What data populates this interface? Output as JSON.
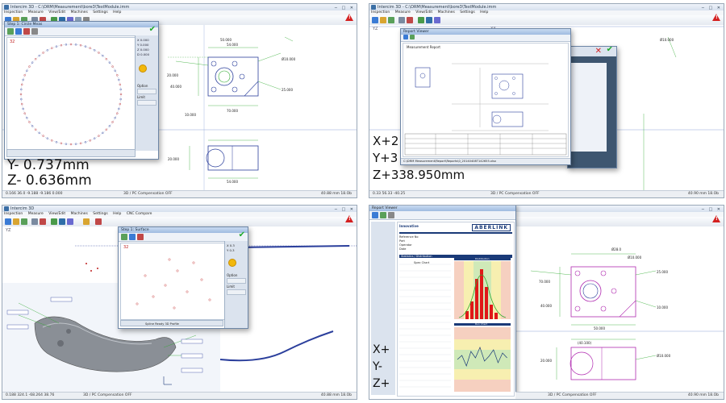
{
  "app": {
    "title_q1": "Intercim 3D - C:\\DRM\\Measurement\\bore3\\TestModule.imm",
    "title_q3": "Intercim 3D",
    "menu_full": [
      "Inspection",
      "Measure",
      "View/Edit",
      "Machines",
      "Settings",
      "Help"
    ],
    "menu_q3": [
      "Inspection",
      "Measure",
      "View/Edit",
      "Machines",
      "Settings",
      "Help",
      "CNC Compare"
    ],
    "menu_q4": [
      "Inspection",
      "Measure"
    ]
  },
  "q1": {
    "axis_label": "Y",
    "dialog_title": "Step 1: Circle Meas",
    "point_count": "32",
    "side_values": [
      "X  0.000",
      "Y  0.000",
      "Z  0.000",
      "D  0.000"
    ],
    "side_labels": [
      "Option",
      "Limit"
    ],
    "readout": {
      "y": "Y-  0.737mm",
      "z": "Z-  0.636mm"
    },
    "dims": [
      "50.000",
      "54.000",
      "20.000",
      "40.000",
      "54.000",
      "10.000",
      "20.000",
      "25.000",
      "70.000",
      "Ø10.000"
    ],
    "status": "0.166  36.0 -9.188 -9.186 0.000",
    "status_mid": "3D / PC Compensation OFF",
    "status_right": "40.88  mm  18.Ob"
  },
  "q2": {
    "axis_label_left": "YZ",
    "axis_label_mid": "XX",
    "report_title": "Report Viewer",
    "report_header": "Measurement Report",
    "readout": {
      "x": "X+2",
      "y": "Y+3",
      "z": "Z+338.950mm"
    },
    "report_status": "C:\\DRM Measurement\\Report\\Reports\\0_20140408T142655.xlsx",
    "status": "0.33  56.33   -40.25",
    "status_mid": "3D / PC Compensation OFF",
    "status_right": "40.90  mm  18.Ob"
  },
  "q3": {
    "axis_label": "YZ",
    "dialog_title": "Step 1: Surface",
    "point_count": "32",
    "side_labels": [
      "Option",
      "Limit"
    ],
    "side_values": [
      "X  0.3",
      "Y  0.3"
    ],
    "prompt": "Spline Ready 3D Profile",
    "status": "0.188 324.1 -68.264 38.76",
    "status_mid": "3D / PC Compensation OFF",
    "status_right": "40.88  mm  18.Ob"
  },
  "q4": {
    "report_title": "Report Viewer",
    "company": "ABERLINK",
    "company_sub": "Innovative",
    "spc_title": "Statistics / Distribution",
    "spc_chart_title": "Spec Chart",
    "histogram_title": "Distribution",
    "run_chart_title": "Run Chart",
    "field_labels": [
      "Reference No",
      "Part",
      "Operator",
      "Date"
    ],
    "readout": {
      "x": "X+",
      "y": "Y-",
      "z": "Z+"
    },
    "dims": [
      "Ø28.0",
      "Ø10.000",
      "50.000",
      "70.000",
      "40.000",
      "25.000",
      "10.000",
      "20.000",
      "Ø10.000",
      "(40.100)"
    ],
    "status": "0.110  5.7   -3.000",
    "status_mid": "3D / PC Compensation OFF",
    "status_right": "40.90  mm  18.Ob"
  },
  "colors": {
    "accent": "#1a3a78",
    "ok_green": "#1faa2a",
    "warn_red": "#d42020",
    "dim_green": "#2da92d",
    "dim_blue": "#2b3f9c",
    "dim_magenta": "#b02ab0",
    "hist_red": "#e01818"
  }
}
